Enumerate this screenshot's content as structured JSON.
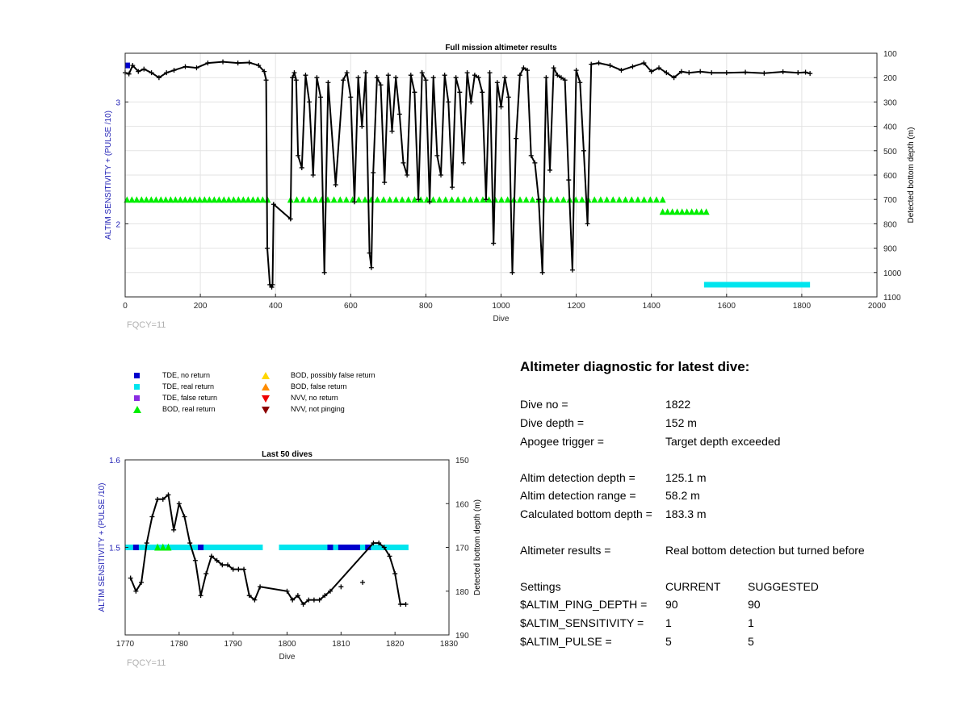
{
  "chart_data": [
    {
      "type": "scatter",
      "title": "Full mission altimeter results",
      "xlabel": "Dive",
      "ylabel_left": "ALTIM SENSITIVITY + (PULSE /10)",
      "ylabel_right": "Detected bottom depth (m)",
      "xlim": [
        0,
        2000
      ],
      "xticks": [
        0,
        200,
        400,
        600,
        800,
        1000,
        1200,
        1400,
        1600,
        1800,
        2000
      ],
      "ylim_left": [
        1.4,
        3.4
      ],
      "yticks_left": [
        2,
        3
      ],
      "ylim_right_reversed": [
        100,
        1100
      ],
      "yticks_right": [
        100,
        200,
        300,
        400,
        500,
        600,
        700,
        800,
        900,
        1000,
        1100
      ],
      "grid": true,
      "footnote": "FQCY=11",
      "series": [
        {
          "name": "Detected bottom depth",
          "axis": "right",
          "style": "black-line-plus",
          "x": [
            0,
            10,
            20,
            35,
            50,
            70,
            90,
            110,
            130,
            160,
            190,
            220,
            260,
            300,
            330,
            355,
            370,
            375,
            378,
            385,
            390,
            392,
            395,
            440,
            445,
            450,
            455,
            460,
            470,
            480,
            490,
            500,
            510,
            520,
            530,
            540,
            560,
            580,
            590,
            600,
            610,
            620,
            630,
            640,
            650,
            655,
            660,
            670,
            680,
            690,
            700,
            710,
            720,
            730,
            740,
            750,
            760,
            770,
            780,
            790,
            800,
            810,
            820,
            830,
            840,
            850,
            860,
            870,
            880,
            890,
            900,
            910,
            920,
            930,
            940,
            950,
            960,
            970,
            980,
            990,
            1000,
            1010,
            1020,
            1030,
            1040,
            1050,
            1060,
            1070,
            1080,
            1090,
            1100,
            1110,
            1120,
            1130,
            1140,
            1150,
            1160,
            1170,
            1180,
            1190,
            1200,
            1210,
            1220,
            1230,
            1240,
            1260,
            1290,
            1320,
            1350,
            1380,
            1400,
            1420,
            1440,
            1460,
            1480,
            1500,
            1530,
            1560,
            1600,
            1650,
            1700,
            1750,
            1790,
            1810,
            1822
          ],
          "y": [
            180,
            185,
            150,
            175,
            165,
            180,
            200,
            180,
            170,
            155,
            160,
            140,
            135,
            140,
            138,
            150,
            175,
            210,
            900,
            1050,
            1060,
            1050,
            720,
            780,
            200,
            180,
            210,
            520,
            570,
            190,
            300,
            600,
            200,
            280,
            1000,
            220,
            640,
            210,
            180,
            280,
            710,
            200,
            400,
            180,
            920,
            980,
            590,
            200,
            230,
            630,
            190,
            420,
            200,
            350,
            550,
            600,
            190,
            260,
            700,
            180,
            210,
            710,
            200,
            520,
            600,
            190,
            300,
            650,
            200,
            260,
            550,
            180,
            300,
            190,
            200,
            260,
            700,
            180,
            880,
            220,
            320,
            200,
            280,
            1000,
            450,
            190,
            160,
            170,
            520,
            550,
            700,
            1000,
            200,
            580,
            160,
            190,
            200,
            210,
            620,
            990,
            170,
            220,
            500,
            800,
            145,
            140,
            150,
            170,
            155,
            140,
            175,
            160,
            180,
            200,
            175,
            180,
            175,
            180,
            180,
            178,
            182,
            176,
            180,
            178,
            183
          ]
        },
        {
          "name": "Altimeter sensitivity + pulse/10",
          "axis": "left",
          "style": "markers",
          "segments": [
            {
              "from": 0,
              "to": 12,
              "y": 3.3,
              "marker": "TDE, no return"
            },
            {
              "from": 5,
              "to": 380,
              "y": 2.2,
              "marker": "BOD, real return"
            },
            {
              "from": 440,
              "to": 1430,
              "y": 2.2,
              "marker": "BOD, real return"
            },
            {
              "from": 1430,
              "to": 1555,
              "y": 2.1,
              "marker": "BOD, real return"
            },
            {
              "from": 1540,
              "to": 1822,
              "y": 1.5,
              "marker": "TDE, real return"
            }
          ]
        }
      ]
    },
    {
      "type": "scatter",
      "title": "Last 50 dives",
      "xlabel": "Dive",
      "ylabel_left": "ALTIM SENSITIVITY + (PULSE /10)",
      "ylabel_right": "Detected bottom depth (m)",
      "xlim": [
        1770,
        1830
      ],
      "xticks": [
        1770,
        1780,
        1790,
        1800,
        1810,
        1820,
        1830
      ],
      "ylim_left": [
        1.4,
        1.6
      ],
      "yticks_left": [
        1.5,
        1.6
      ],
      "ylim_right_reversed": [
        150,
        190
      ],
      "yticks_right": [
        150,
        160,
        170,
        180,
        190
      ],
      "grid": false,
      "footnote": "FQCY=11",
      "series": [
        {
          "name": "Detected bottom depth",
          "axis": "right",
          "style": "black-line-plus",
          "x": [
            1771,
            1772,
            1773,
            1774,
            1775,
            1776,
            1777,
            1778,
            1779,
            1780,
            1781,
            1782,
            1783,
            1784,
            1785,
            1786,
            1787,
            1788,
            1789,
            1790,
            1791,
            1792,
            1793,
            1794,
            1795,
            1800,
            1801,
            1802,
            1803,
            1804,
            1805,
            1806,
            1807,
            1808,
            1816,
            1817,
            1818,
            1819,
            1820,
            1821,
            1822
          ],
          "y": [
            177,
            180,
            178,
            169,
            163,
            159,
            159,
            158,
            166,
            160,
            163,
            169,
            173,
            181,
            176,
            172,
            173,
            174,
            174,
            175,
            175,
            175,
            181,
            182,
            179,
            180,
            182,
            181,
            183,
            182,
            182,
            182,
            181,
            180,
            169,
            169,
            170,
            172,
            176,
            183,
            183
          ]
        },
        {
          "name": "Isolated detections",
          "axis": "right",
          "style": "plus",
          "x": [
            1810,
            1814
          ],
          "y": [
            179,
            178
          ]
        },
        {
          "name": "Altimeter sensitivity + pulse/10",
          "axis": "left",
          "style": "markers",
          "segments": [
            {
              "from": 1770,
              "to": 1795.5,
              "y": 1.5,
              "marker": "TDE, real return"
            },
            {
              "from": 1798.5,
              "to": 1822.5,
              "y": 1.5,
              "marker": "TDE, real return"
            }
          ],
          "no_return_dives": [
            1772,
            1784,
            1808,
            1810,
            1811,
            1812,
            1813,
            1815
          ],
          "bod_real_dives": [
            1776,
            1777,
            1778
          ]
        }
      ]
    }
  ],
  "legend": [
    {
      "label": "TDE, no return",
      "marker": "square",
      "color": "#0000cd"
    },
    {
      "label": "TDE, real return",
      "marker": "square",
      "color": "#00e5ee"
    },
    {
      "label": "TDE, false return",
      "marker": "square",
      "color": "#8a2be2"
    },
    {
      "label": "BOD, real return",
      "marker": "triangle-up",
      "color": "#00ee00"
    },
    {
      "label": "BOD, possibly false return",
      "marker": "triangle-up",
      "color": "#ffd700"
    },
    {
      "label": "BOD, false return",
      "marker": "triangle-up",
      "color": "#ff8c00"
    },
    {
      "label": "NVV, no return",
      "marker": "triangle-down",
      "color": "#ee0000"
    },
    {
      "label": "NVV, not pinging",
      "marker": "triangle-down",
      "color": "#8b0000"
    }
  ],
  "diagnostic": {
    "title": "Altimeter diagnostic for latest dive:",
    "dive_no_label": "Dive no =",
    "dive_no": "1822",
    "dive_depth_label": "Dive depth =",
    "dive_depth": "152 m",
    "apogee_label": "Apogee trigger =",
    "apogee": "Target depth exceeded",
    "altim_depth_label": "Altim detection depth =",
    "altim_depth": "125.1 m",
    "altim_range_label": "Altim detection range =",
    "altim_range": "58.2 m",
    "calc_bottom_label": "Calculated bottom depth =",
    "calc_bottom": "183.3 m",
    "results_label": "Altimeter results =",
    "results": "Real bottom detection but turned before",
    "settings_header": "Settings",
    "current_header": "CURRENT",
    "suggested_header": "SUGGESTED",
    "ping_depth_label": "$ALTIM_PING_DEPTH =",
    "ping_depth_current": "90",
    "ping_depth_suggested": "90",
    "sensitivity_label": "$ALTIM_SENSITIVITY =",
    "sensitivity_current": "1",
    "sensitivity_suggested": "1",
    "pulse_label": "$ALTIM_PULSE =",
    "pulse_current": "5",
    "pulse_suggested": "5"
  }
}
